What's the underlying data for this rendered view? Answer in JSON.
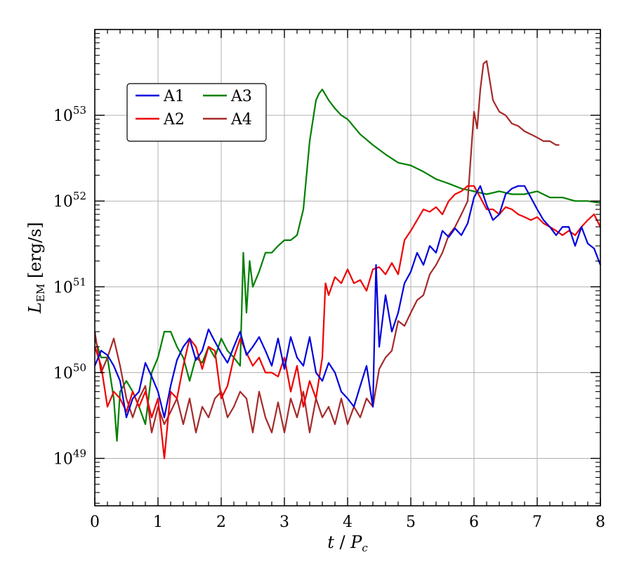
{
  "chart_data": {
    "type": "line",
    "xlabel": "t / P_c",
    "ylabel": "L_EM [erg/s]",
    "xlim": [
      0,
      8
    ],
    "ylim": [
      2.8e+48,
      1e+54
    ],
    "yscale": "log",
    "grid": true,
    "legend_position": "top-left",
    "x_ticks": [
      "0",
      "1",
      "2",
      "3",
      "4",
      "5",
      "6",
      "7",
      "8"
    ],
    "y_ticks": [
      {
        "value": 1e+49,
        "base": "10",
        "exp": "49"
      },
      {
        "value": 1e+50,
        "base": "10",
        "exp": "50"
      },
      {
        "value": 1e+51,
        "base": "10",
        "exp": "51"
      },
      {
        "value": 1e+52,
        "base": "10",
        "exp": "52"
      },
      {
        "value": 1e+53,
        "base": "10",
        "exp": "53"
      }
    ],
    "series": [
      {
        "name": "A1",
        "color": "#0000dd",
        "x": [
          0,
          0.1,
          0.2,
          0.3,
          0.4,
          0.5,
          0.6,
          0.7,
          0.8,
          0.9,
          1.0,
          1.1,
          1.2,
          1.3,
          1.4,
          1.5,
          1.6,
          1.7,
          1.8,
          1.9,
          2.0,
          2.1,
          2.2,
          2.3,
          2.4,
          2.5,
          2.6,
          2.7,
          2.8,
          2.9,
          3.0,
          3.1,
          3.2,
          3.3,
          3.4,
          3.5,
          3.6,
          3.7,
          3.8,
          3.9,
          4.0,
          4.1,
          4.2,
          4.3,
          4.4,
          4.45,
          4.5,
          4.6,
          4.7,
          4.8,
          4.9,
          5.0,
          5.1,
          5.2,
          5.3,
          5.4,
          5.5,
          5.6,
          5.7,
          5.8,
          5.9,
          6.0,
          6.1,
          6.2,
          6.3,
          6.4,
          6.5,
          6.6,
          6.7,
          6.8,
          6.9,
          7.0,
          7.1,
          7.2,
          7.3,
          7.4,
          7.5,
          7.6,
          7.7,
          7.8,
          7.9,
          8.0
        ],
        "y": [
          1.2e+50,
          1.8e+50,
          1.6e+50,
          1.2e+50,
          8e+49,
          3e+49,
          5e+49,
          6e+49,
          1.3e+50,
          9e+49,
          6e+49,
          3e+49,
          7e+49,
          1.4e+50,
          2e+50,
          2.5e+50,
          1.4e+50,
          1.8e+50,
          3.2e+50,
          2.3e+50,
          1.7e+50,
          1.3e+50,
          2e+50,
          3e+50,
          1.6e+50,
          2e+50,
          2.6e+50,
          1.8e+50,
          1.2e+50,
          2.5e+50,
          1.1e+50,
          2.6e+50,
          1.5e+50,
          1.2e+50,
          2.6e+50,
          1e+50,
          8e+49,
          1.3e+50,
          1e+50,
          6e+49,
          5e+49,
          4e+49,
          7e+49,
          1.2e+50,
          4e+49,
          1.8e+51,
          2e+50,
          8e+50,
          3e+50,
          5e+50,
          1.1e+51,
          1.5e+51,
          2.5e+51,
          1.8e+51,
          3e+51,
          2.5e+51,
          4.5e+51,
          3.8e+51,
          4.8e+51,
          4e+51,
          5.5e+51,
          1.1e+52,
          1.5e+52,
          9e+51,
          6e+51,
          7e+51,
          1.2e+52,
          1.4e+52,
          1.5e+52,
          1.5e+52,
          1.1e+52,
          8e+51,
          6e+51,
          5e+51,
          4e+51,
          5e+51,
          5e+51,
          3e+51,
          5e+51,
          3.2e+51,
          2.8e+51,
          1.8e+51
        ]
      },
      {
        "name": "A2",
        "color": "#ee0000",
        "x": [
          0,
          0.1,
          0.2,
          0.3,
          0.4,
          0.5,
          0.6,
          0.7,
          0.8,
          0.9,
          1.0,
          1.1,
          1.2,
          1.3,
          1.4,
          1.5,
          1.6,
          1.7,
          1.8,
          1.9,
          2.0,
          2.1,
          2.2,
          2.3,
          2.4,
          2.5,
          2.6,
          2.7,
          2.8,
          2.9,
          3.0,
          3.1,
          3.2,
          3.3,
          3.4,
          3.5,
          3.6,
          3.65,
          3.7,
          3.8,
          3.9,
          4.0,
          4.1,
          4.2,
          4.3,
          4.4,
          4.5,
          4.6,
          4.7,
          4.8,
          4.9,
          5.0,
          5.1,
          5.2,
          5.3,
          5.4,
          5.5,
          5.6,
          5.7,
          5.8,
          5.9,
          6.0,
          6.1,
          6.2,
          6.3,
          6.4,
          6.5,
          6.6,
          6.7,
          6.8,
          6.9,
          7.0,
          7.1,
          7.2,
          7.3,
          7.4,
          7.5,
          7.6,
          7.7,
          7.8,
          7.9,
          8.0
        ],
        "y": [
          2e+50,
          1.2e+50,
          4e+49,
          6e+49,
          5e+49,
          3.5e+49,
          6e+49,
          4e+49,
          6e+49,
          3e+49,
          5e+49,
          1e+49,
          6e+49,
          5e+49,
          1.2e+50,
          2.5e+50,
          2e+50,
          1.1e+50,
          2e+50,
          1.8e+50,
          5e+49,
          7e+49,
          1.5e+50,
          2.5e+50,
          1.7e+50,
          1.2e+50,
          1.5e+50,
          1e+50,
          1e+50,
          9e+49,
          1.5e+50,
          6e+49,
          1.2e+50,
          4e+49,
          8e+49,
          5e+49,
          1.5e+50,
          1.1e+51,
          8e+50,
          1.3e+51,
          1.1e+51,
          1.6e+51,
          1.1e+51,
          1.2e+51,
          9e+50,
          1.6e+51,
          1.7e+51,
          1.4e+51,
          1.9e+51,
          1.4e+51,
          3.5e+51,
          4.5e+51,
          6e+51,
          8e+51,
          7.5e+51,
          8.5e+51,
          7e+51,
          1e+52,
          1.2e+52,
          1.3e+52,
          1.5e+52,
          1.5e+52,
          1.1e+52,
          8e+51,
          8e+51,
          7e+51,
          8.5e+51,
          8e+51,
          7e+51,
          6.5e+51,
          6e+51,
          6.5e+51,
          5.5e+51,
          5e+51,
          4.5e+51,
          4e+51,
          4.5e+51,
          4e+51,
          5e+51,
          6e+51,
          7e+51,
          5e+51
        ]
      },
      {
        "name": "A3",
        "color": "#008000",
        "x": [
          0,
          0.1,
          0.2,
          0.3,
          0.35,
          0.4,
          0.5,
          0.6,
          0.7,
          0.8,
          0.9,
          1.0,
          1.1,
          1.2,
          1.3,
          1.4,
          1.5,
          1.6,
          1.7,
          1.8,
          1.9,
          2.0,
          2.1,
          2.2,
          2.3,
          2.35,
          2.4,
          2.45,
          2.5,
          2.6,
          2.7,
          2.8,
          2.9,
          3.0,
          3.1,
          3.2,
          3.3,
          3.4,
          3.5,
          3.55,
          3.6,
          3.7,
          3.8,
          3.9,
          4.0,
          4.2,
          4.4,
          4.6,
          4.8,
          5.0,
          5.2,
          5.4,
          5.6,
          5.8,
          6.0,
          6.2,
          6.4,
          6.6,
          6.8,
          7.0,
          7.2,
          7.4,
          7.6,
          7.8,
          8.0
        ],
        "y": [
          2.5e+50,
          1.5e+50,
          1.5e+50,
          5e+49,
          1.6e+49,
          6e+49,
          8e+49,
          6e+49,
          4e+49,
          2.5e+49,
          1e+50,
          1.5e+50,
          3e+50,
          3e+50,
          2e+50,
          1.5e+50,
          8e+49,
          1.5e+50,
          1.3e+50,
          2e+50,
          1.5e+50,
          2.5e+50,
          1.8e+50,
          1.5e+50,
          1.2e+50,
          2.5e+51,
          5e+50,
          2e+51,
          1e+51,
          1.5e+51,
          2.5e+51,
          2.5e+51,
          3e+51,
          3.5e+51,
          3.5e+51,
          4e+51,
          8e+51,
          5e+52,
          1.5e+53,
          1.8e+53,
          2e+53,
          1.5e+53,
          1.2e+53,
          1e+53,
          9e+52,
          6e+52,
          4.5e+52,
          3.5e+52,
          2.8e+52,
          2.6e+52,
          2.2e+52,
          1.8e+52,
          1.6e+52,
          1.4e+52,
          1.3e+52,
          1.2e+52,
          1.3e+52,
          1.2e+52,
          1.2e+52,
          1.3e+52,
          1.1e+52,
          1.1e+52,
          1e+52,
          1e+52,
          9.5e+51
        ]
      },
      {
        "name": "A4",
        "color": "#a52a2a",
        "x": [
          0,
          0.1,
          0.2,
          0.3,
          0.4,
          0.5,
          0.6,
          0.7,
          0.8,
          0.9,
          1.0,
          1.1,
          1.2,
          1.3,
          1.4,
          1.5,
          1.6,
          1.7,
          1.8,
          1.9,
          2.0,
          2.1,
          2.2,
          2.3,
          2.4,
          2.5,
          2.6,
          2.7,
          2.8,
          2.9,
          3.0,
          3.1,
          3.2,
          3.3,
          3.4,
          3.5,
          3.6,
          3.7,
          3.8,
          3.9,
          4.0,
          4.1,
          4.2,
          4.3,
          4.4,
          4.5,
          4.6,
          4.7,
          4.8,
          4.9,
          5.0,
          5.1,
          5.2,
          5.3,
          5.4,
          5.5,
          5.6,
          5.7,
          5.8,
          5.9,
          6.0,
          6.05,
          6.1,
          6.15,
          6.2,
          6.3,
          6.4,
          6.5,
          6.6,
          6.7,
          6.8,
          6.9,
          7.0,
          7.1,
          7.2,
          7.3,
          7.35
        ],
        "y": [
          3e+50,
          1e+50,
          1.5e+50,
          2.5e+50,
          1.2e+50,
          5e+49,
          3e+49,
          5e+49,
          7e+49,
          2e+49,
          4e+49,
          2.5e+49,
          3.5e+49,
          5e+49,
          2.5e+49,
          5e+49,
          2e+49,
          4e+49,
          3e+49,
          5e+49,
          6e+49,
          3e+49,
          4e+49,
          6e+49,
          5e+49,
          2e+49,
          6e+49,
          3e+49,
          2e+49,
          4.5e+49,
          2e+49,
          5e+49,
          3e+49,
          6e+49,
          2e+49,
          5e+49,
          3e+49,
          4e+49,
          2.5e+49,
          5e+49,
          2.5e+49,
          4e+49,
          3e+49,
          5e+49,
          4e+49,
          1.1e+50,
          1.5e+50,
          1.8e+50,
          4e+50,
          3.5e+50,
          5e+50,
          7e+50,
          8e+50,
          1.4e+51,
          1.8e+51,
          2.5e+51,
          4e+51,
          5e+51,
          7e+51,
          1e+52,
          1.1e+53,
          7e+52,
          2e+53,
          4e+53,
          4.3e+53,
          1.5e+53,
          1.1e+53,
          1e+53,
          8e+52,
          7.5e+52,
          6.5e+52,
          6e+52,
          5.5e+52,
          5e+52,
          5e+52,
          4.5e+52,
          4.5e+52
        ]
      }
    ]
  }
}
